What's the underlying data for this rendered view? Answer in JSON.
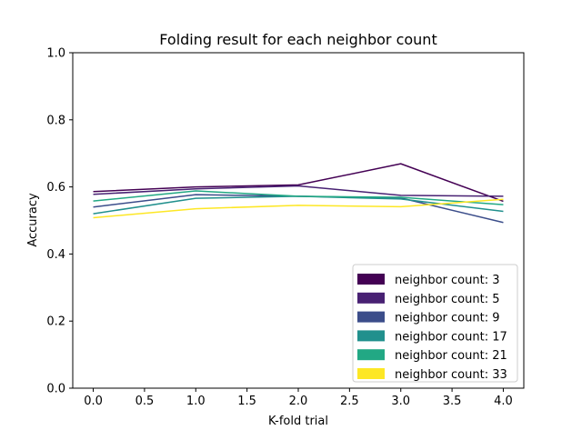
{
  "chart_data": {
    "type": "line",
    "title": "Folding result for each neighbor count",
    "xlabel": "K-fold trial",
    "ylabel": "Accuracy",
    "x": [
      0,
      1,
      2,
      3,
      4
    ],
    "xlim": [
      -0.2,
      4.2
    ],
    "ylim": [
      0.0,
      1.0
    ],
    "xticks": [
      "0.0",
      "0.5",
      "1.0",
      "1.5",
      "2.0",
      "2.5",
      "3.0",
      "3.5",
      "4.0"
    ],
    "yticks": [
      "0.0",
      "0.2",
      "0.4",
      "0.6",
      "0.8",
      "1.0"
    ],
    "grid": false,
    "legend_position": "lower-right",
    "series": [
      {
        "name": "neighbor count: 3",
        "color": "#440154",
        "values": [
          0.586,
          0.6,
          0.606,
          0.669,
          0.557
        ]
      },
      {
        "name": "neighbor count: 5",
        "color": "#482173",
        "values": [
          0.578,
          0.594,
          0.603,
          0.575,
          0.572
        ]
      },
      {
        "name": "neighbor count: 9",
        "color": "#3b4d8a",
        "values": [
          0.54,
          0.577,
          0.572,
          0.567,
          0.494
        ]
      },
      {
        "name": "neighbor count: 17",
        "color": "#21908d",
        "values": [
          0.52,
          0.566,
          0.572,
          0.564,
          0.527
        ]
      },
      {
        "name": "neighbor count: 21",
        "color": "#22a884",
        "values": [
          0.558,
          0.588,
          0.572,
          0.569,
          0.547
        ]
      },
      {
        "name": "neighbor count: 33",
        "color": "#fde725",
        "values": [
          0.508,
          0.535,
          0.545,
          0.541,
          0.563
        ]
      }
    ]
  }
}
